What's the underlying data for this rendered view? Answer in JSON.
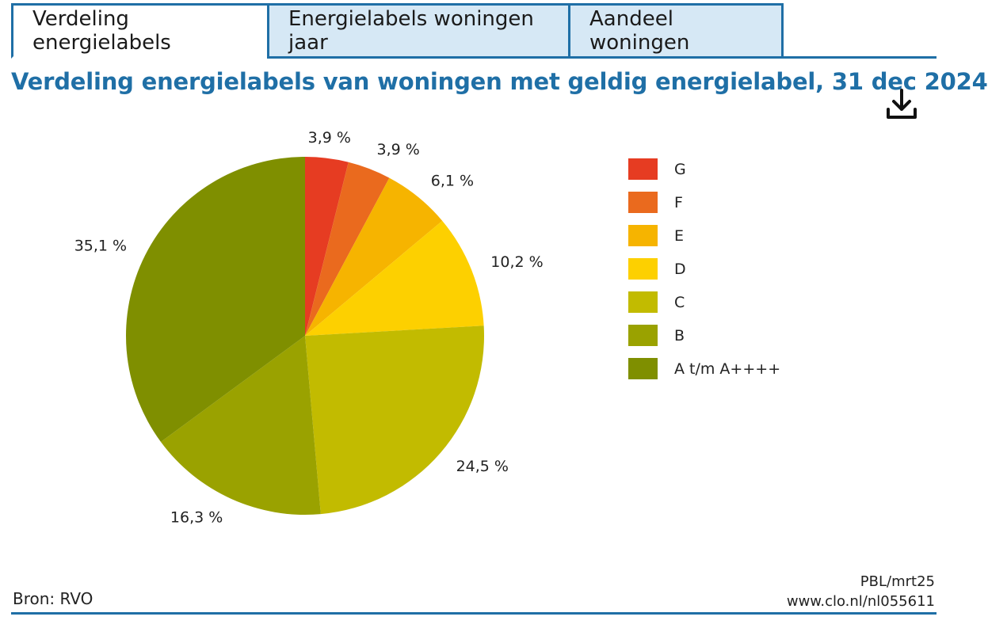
{
  "tabs": [
    {
      "label": "Verdeling energielabels",
      "active": true
    },
    {
      "label": "Energielabels woningen jaar",
      "active": false
    },
    {
      "label": "Aandeel woningen",
      "active": false
    }
  ],
  "title": "Verdeling energielabels van woningen met geldig energielabel, 31 dec 2024",
  "download_icon": "download-icon",
  "chart_data": {
    "type": "pie",
    "title": "Verdeling energielabels van woningen met geldig energielabel, 31 dec 2024",
    "categories": [
      "G",
      "F",
      "E",
      "D",
      "C",
      "B",
      "A t/m A++++"
    ],
    "values": [
      3.9,
      3.9,
      6.1,
      10.2,
      24.5,
      16.3,
      35.1
    ],
    "value_labels": [
      "3,9 %",
      "3,9 %",
      "6,1 %",
      "10,2 %",
      "24,5 %",
      "16,3 %",
      "35,1 %"
    ],
    "colors": [
      "#e63c22",
      "#ea6a1e",
      "#f6b400",
      "#fdd000",
      "#c2bb00",
      "#9aa200",
      "#7f8f00"
    ],
    "legend_position": "right",
    "start_angle": "12 o'clock, clockwise"
  },
  "footer": {
    "source": "Bron: RVO",
    "code": "PBL/mrt25",
    "url": "www.clo.nl/nl055611"
  }
}
